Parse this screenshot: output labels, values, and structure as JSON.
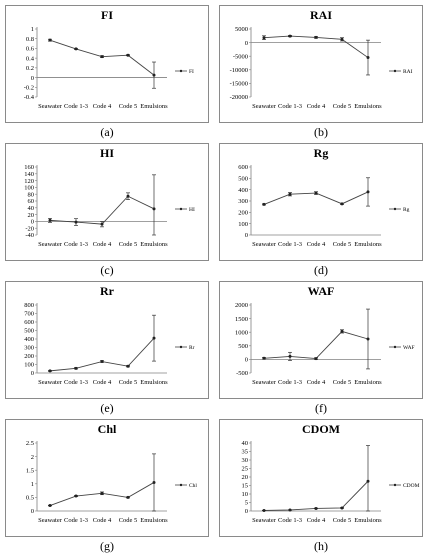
{
  "categories": [
    "Seawater",
    "Code 1-3",
    "Code 4",
    "Code 5",
    "Emulsions"
  ],
  "chart_data": [
    {
      "type": "line",
      "title": "FI",
      "legend": "FI",
      "legend_position": "right",
      "caption": "(a)",
      "ylim": [
        -0.4,
        1
      ],
      "yticks": [
        -0.4,
        -0.2,
        0,
        0.2,
        0.4,
        0.6,
        0.8,
        1
      ],
      "ytick_labels": [
        "-0.4",
        "-0.2",
        "0",
        "0.2",
        "0.4",
        "0.6",
        "0.8",
        "1"
      ],
      "values": [
        0.77,
        0.59,
        0.43,
        0.46,
        0.05
      ],
      "errors": [
        0.02,
        0.01,
        0.02,
        0.01,
        0.27
      ]
    },
    {
      "type": "line",
      "title": "RAI",
      "legend": "RAI",
      "legend_position": "right",
      "caption": "(b)",
      "ylim": [
        -20000,
        5000
      ],
      "yticks": [
        -20000,
        -15000,
        -10000,
        -5000,
        0,
        5000
      ],
      "ytick_labels": [
        "-20000",
        "-15000",
        "-10000",
        "-5000",
        "0",
        "5000"
      ],
      "values": [
        1800,
        2400,
        1900,
        1200,
        -5500
      ],
      "errors": [
        700,
        250,
        300,
        600,
        6400
      ]
    },
    {
      "type": "line",
      "title": "HI",
      "legend": "HI",
      "legend_position": "right",
      "caption": "(c)",
      "ylim": [
        -40,
        160
      ],
      "yticks": [
        -40,
        -20,
        0,
        20,
        40,
        60,
        80,
        100,
        120,
        140,
        160
      ],
      "ytick_labels": [
        "-40",
        "-20",
        "0",
        "20",
        "40",
        "60",
        "80",
        "100",
        "120",
        "140",
        "160"
      ],
      "values": [
        3,
        -2,
        -8,
        74,
        37
      ],
      "errors": [
        6,
        10,
        8,
        10,
        100
      ]
    },
    {
      "type": "line",
      "title": "Rg",
      "legend": "Rg",
      "legend_position": "right",
      "caption": "(d)",
      "ylim": [
        0,
        600
      ],
      "yticks": [
        0,
        100,
        200,
        300,
        400,
        500,
        600
      ],
      "ytick_labels": [
        "0",
        "100",
        "200",
        "300",
        "400",
        "500",
        "600"
      ],
      "values": [
        270,
        360,
        370,
        275,
        380
      ],
      "errors": [
        5,
        15,
        12,
        5,
        125
      ]
    },
    {
      "type": "line",
      "title": "Rr",
      "legend": "Rr",
      "legend_position": "right",
      "caption": "(e)",
      "ylim": [
        0,
        800
      ],
      "yticks": [
        0,
        100,
        200,
        300,
        400,
        500,
        600,
        700,
        800
      ],
      "ytick_labels": [
        "0",
        "100",
        "200",
        "300",
        "400",
        "500",
        "600",
        "700",
        "800"
      ],
      "values": [
        25,
        55,
        135,
        80,
        410
      ],
      "errors": [
        5,
        8,
        10,
        8,
        270
      ]
    },
    {
      "type": "line",
      "title": "WAF",
      "legend": "WAF",
      "legend_position": "right",
      "caption": "(f)",
      "ylim": [
        -500,
        2000
      ],
      "yticks": [
        -500,
        0,
        500,
        1000,
        1500,
        2000
      ],
      "ytick_labels": [
        "-500",
        "0",
        "500",
        "1000",
        "1500",
        "2000"
      ],
      "values": [
        40,
        110,
        30,
        1030,
        750
      ],
      "errors": [
        30,
        150,
        30,
        60,
        1100
      ]
    },
    {
      "type": "line",
      "title": "Chl",
      "legend": "Chl",
      "legend_position": "right",
      "caption": "(g)",
      "ylim": [
        0,
        2.5
      ],
      "yticks": [
        0,
        0.5,
        1,
        1.5,
        2,
        2.5
      ],
      "ytick_labels": [
        "0",
        "0.5",
        "1",
        "1.5",
        "2",
        "2.5"
      ],
      "values": [
        0.2,
        0.55,
        0.65,
        0.5,
        1.05
      ],
      "errors": [
        0.01,
        0.02,
        0.05,
        0.02,
        1.05
      ]
    },
    {
      "type": "line",
      "title": "CDOM",
      "legend": "CDOM",
      "legend_position": "right",
      "caption": "(h)",
      "ylim": [
        0,
        40
      ],
      "yticks": [
        0,
        5,
        10,
        15,
        20,
        25,
        30,
        35,
        40
      ],
      "ytick_labels": [
        "0",
        "5",
        "10",
        "15",
        "20",
        "25",
        "30",
        "35",
        "40"
      ],
      "values": [
        0.3,
        0.6,
        1.5,
        1.8,
        17.5
      ],
      "errors": [
        0.1,
        0.1,
        0.2,
        0.2,
        21
      ]
    }
  ]
}
